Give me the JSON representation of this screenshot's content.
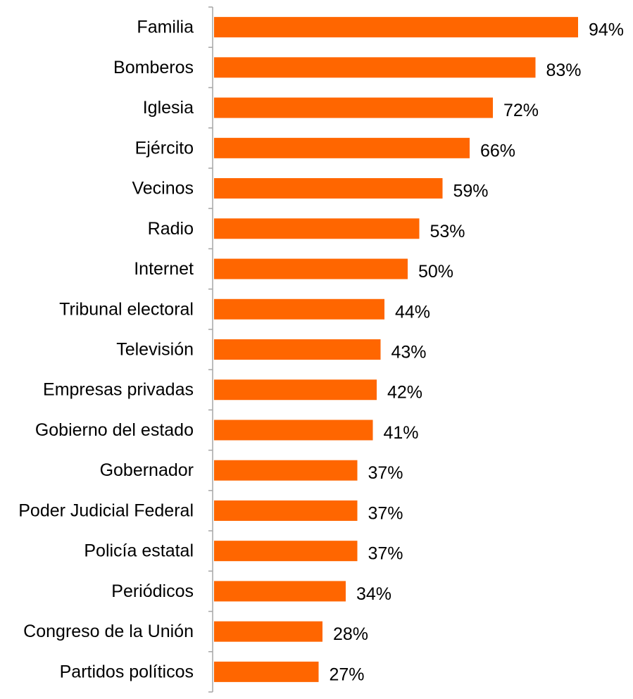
{
  "chart_data": {
    "type": "bar",
    "orientation": "horizontal",
    "categories": [
      "Familia",
      "Bomberos",
      "Iglesia",
      "Ejército",
      "Vecinos",
      "Radio",
      "Internet",
      "Tribunal electoral",
      "Televisión",
      "Empresas privadas",
      "Gobierno del estado",
      "Gobernador",
      "Poder Judicial Federal",
      "Policía estatal",
      "Periódicos",
      "Congreso de la Unión",
      "Partidos políticos"
    ],
    "values": [
      94,
      83,
      72,
      66,
      59,
      53,
      50,
      44,
      43,
      42,
      41,
      37,
      37,
      37,
      34,
      28,
      27
    ],
    "value_labels": [
      "94%",
      "83%",
      "72%",
      "66%",
      "59%",
      "53%",
      "50%",
      "44%",
      "43%",
      "42%",
      "41%",
      "37%",
      "37%",
      "37%",
      "34%",
      "28%",
      "27%"
    ],
    "title": "",
    "xlabel": "",
    "ylabel": "",
    "xlim": [
      0,
      100
    ],
    "grid": false,
    "legend": "none",
    "bar_color": "#FF6600",
    "axis_color": "#A6A6A6"
  }
}
